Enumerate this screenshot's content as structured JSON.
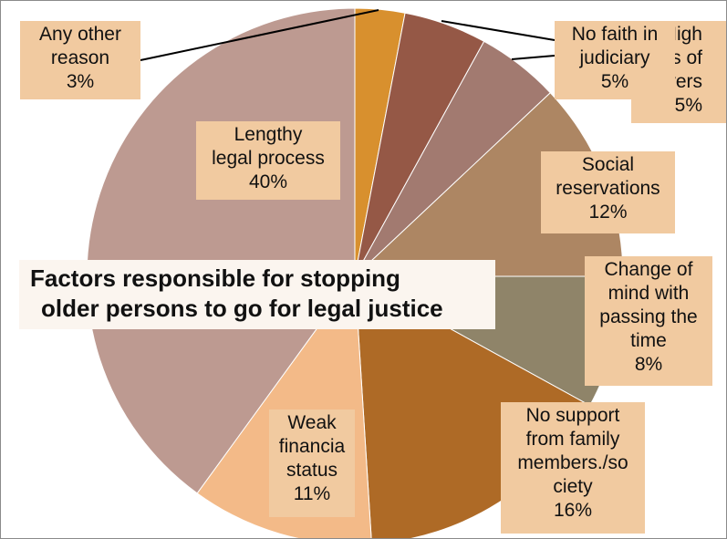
{
  "chart_data": {
    "type": "pie",
    "title": "Factors responsible for stopping older persons to go for legal justice",
    "title_lines": [
      "Factors responsible for stopping",
      "older persons to go for legal justice"
    ],
    "start_angle_deg": 0,
    "direction": "clockwise",
    "slices": [
      {
        "name": "Any other reason",
        "value": 3,
        "color": "#d8902e",
        "label_lines": [
          "Any other",
          "reason",
          "3%"
        ]
      },
      {
        "name": "No faith in judiciary",
        "value": 5,
        "color": "#955846",
        "label_lines": [
          "No faith in",
          "judiciary",
          "5%"
        ]
      },
      {
        "name": "High costs of lawyers",
        "value": 5,
        "color": "#a27a70",
        "label_lines": [
          "High",
          "costs of",
          "lawyers",
          "5%"
        ]
      },
      {
        "name": "Social reservations",
        "value": 12,
        "color": "#ad8663",
        "label_lines": [
          "Social",
          "reservations",
          "12%"
        ]
      },
      {
        "name": "Change of mind with passing the time",
        "value": 8,
        "color": "#8f8469",
        "label_lines": [
          "Change of",
          "mind with",
          "passing the",
          "time",
          "8%"
        ]
      },
      {
        "name": "No support from family members/society",
        "value": 16,
        "color": "#ae6a26",
        "label_lines": [
          "No support",
          "from family",
          "members./so",
          "ciety",
          "16%"
        ]
      },
      {
        "name": "Weak financial status",
        "value": 11,
        "color": "#f3ba88",
        "label_lines": [
          "Weak",
          "financia",
          "status",
          "11%"
        ]
      },
      {
        "name": "Lengthy legal process",
        "value": 40,
        "color": "#bd9a91",
        "label_lines": [
          "Lengthy",
          "legal process",
          "40%"
        ]
      }
    ]
  }
}
